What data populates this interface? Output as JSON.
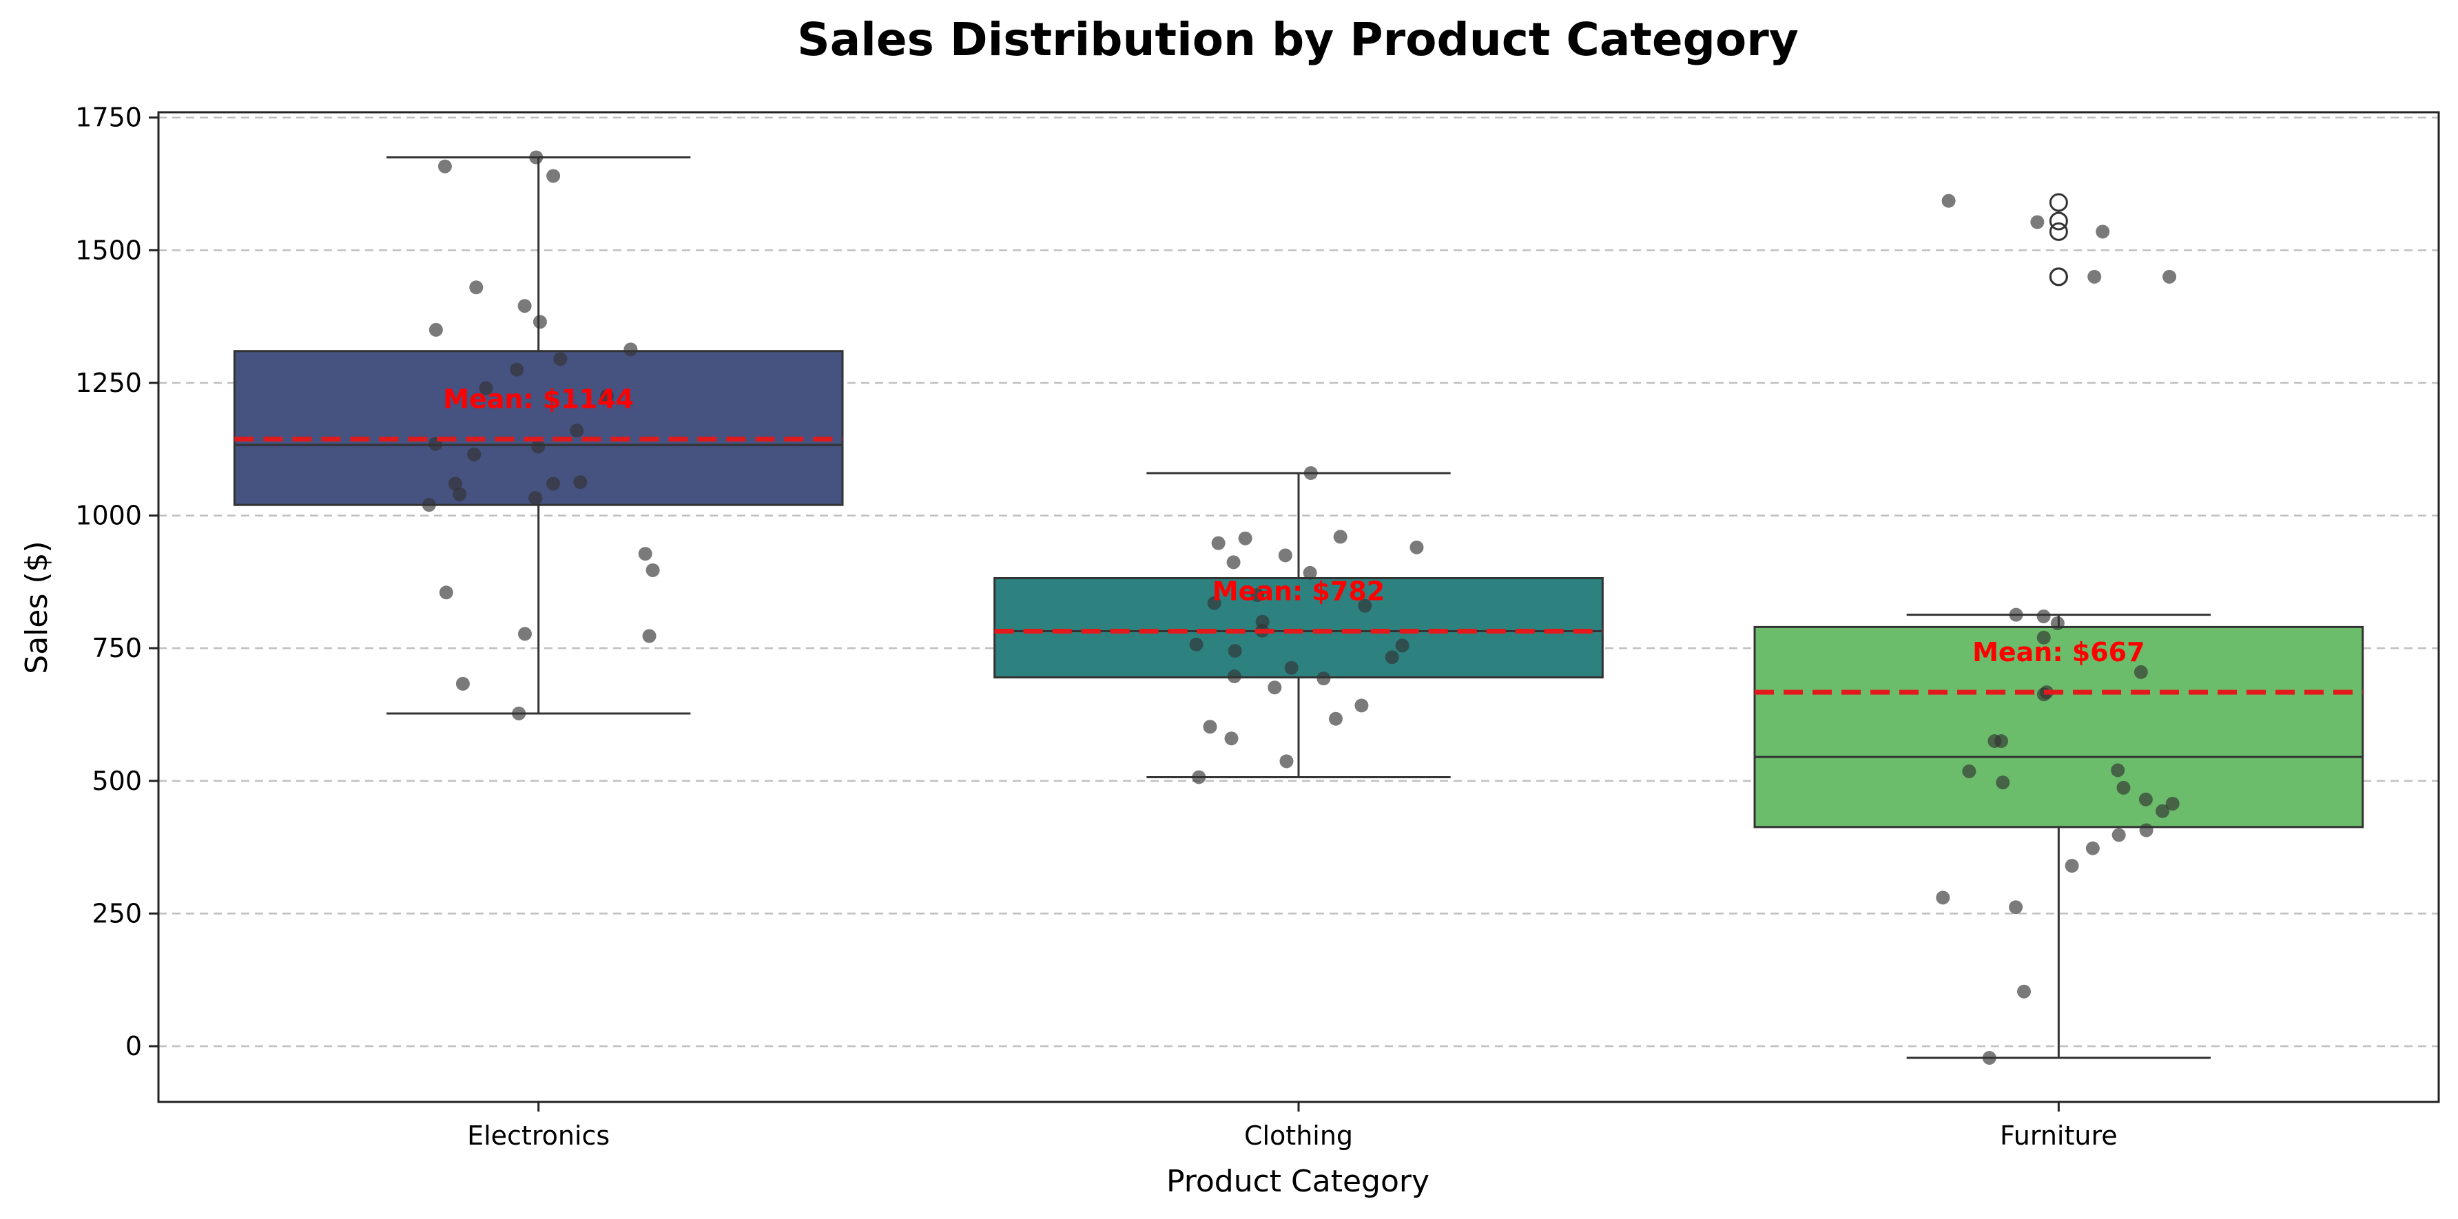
{
  "chart_data": {
    "type": "box",
    "title": "Sales Distribution by Product Category",
    "xlabel": "Product Category",
    "ylabel": "Sales ($)",
    "ylim": [
      -105,
      1760
    ],
    "yticks": [
      0,
      250,
      500,
      750,
      1000,
      1250,
      1500,
      1750
    ],
    "grid": "y-dashed",
    "colors": {
      "Electronics": "#46527f",
      "Clothing": "#2d8280",
      "Furniture": "#6bbd6b",
      "mean_line": "#e31a1c",
      "mean_text": "#ff0000",
      "points": "#333333"
    },
    "categories": [
      "Electronics",
      "Clothing",
      "Furniture"
    ],
    "boxes": [
      {
        "category": "Electronics",
        "q1": 1020,
        "median": 1133,
        "q3": 1310,
        "whisker_low": 627,
        "whisker_high": 1675,
        "mean": 1144,
        "mean_label": "Mean: $1144",
        "outliers": [],
        "points": [
          1675,
          1640,
          1658,
          1430,
          1395,
          1365,
          1350,
          1313,
          1295,
          1275,
          1240,
          1225,
          1160,
          1135,
          1130,
          1115,
          1063,
          1060,
          1060,
          1033,
          1040,
          1020,
          928,
          897,
          855,
          777,
          773,
          683,
          627
        ]
      },
      {
        "category": "Clothing",
        "q1": 695,
        "median": 782,
        "q3": 882,
        "whisker_low": 507,
        "whisker_high": 1080,
        "mean": 782,
        "mean_label": "Mean: $782",
        "outliers": [],
        "points": [
          1080,
          960,
          957,
          948,
          940,
          925,
          912,
          892,
          850,
          835,
          830,
          800,
          783,
          757,
          755,
          745,
          733,
          713,
          697,
          693,
          676,
          642,
          617,
          602,
          580,
          537,
          507
        ]
      },
      {
        "category": "Furniture",
        "q1": 413,
        "median": 545,
        "q3": 790,
        "whisker_low": -22,
        "whisker_high": 813,
        "mean": 667,
        "mean_label": "Mean: $667",
        "outliers": [
          1590,
          1555,
          1535,
          1450,
          1450
        ],
        "points": [
          1593,
          1553,
          1535,
          1450,
          1450,
          813,
          810,
          797,
          770,
          705,
          667,
          663,
          575,
          575,
          520,
          518,
          497,
          487,
          465,
          457,
          443,
          407,
          398,
          373,
          340,
          280,
          262,
          103,
          -22
        ]
      }
    ]
  }
}
